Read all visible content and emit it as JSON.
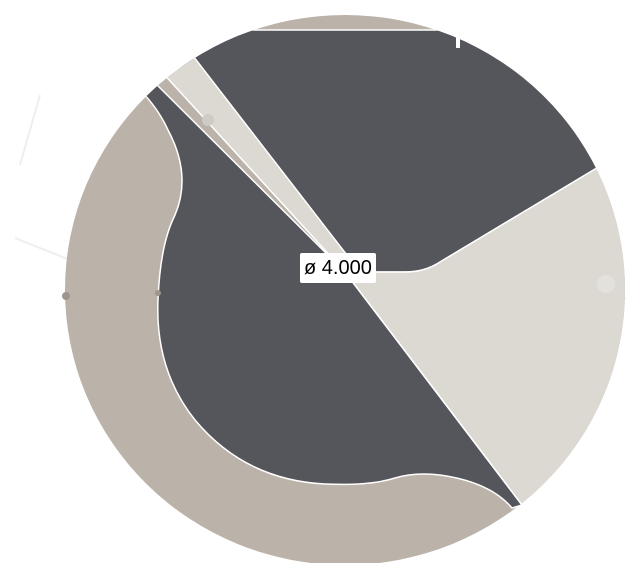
{
  "drawing": {
    "dimension_label": "ø 4.000",
    "colors": {
      "background": "#ffffff",
      "dark_region": "#55565b",
      "light_region": "#dcd9d3",
      "tan_region": "#bbb2a9",
      "seam": "#ffffff"
    }
  }
}
